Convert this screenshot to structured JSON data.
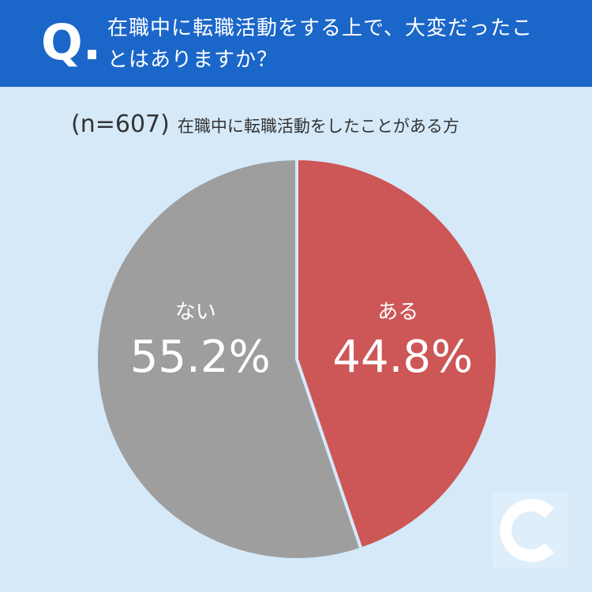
{
  "header": {
    "badge": "Q.",
    "question": "在職中に転職活動をする上で、大変だったことはありますか？"
  },
  "chart_data": {
    "type": "pie",
    "sample_label": "(n=607)",
    "subtitle": "在職中に転職活動をしたことがある方",
    "categories": [
      "ある",
      "ない"
    ],
    "values": [
      44.8,
      55.2
    ],
    "value_labels": [
      "44.8%",
      "55.2%"
    ],
    "colors": [
      "#cd5656",
      "#9e9e9e"
    ]
  }
}
